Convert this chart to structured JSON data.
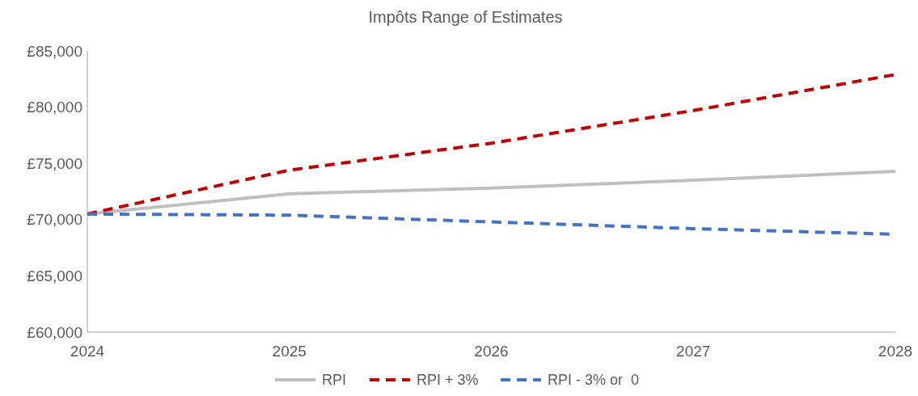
{
  "chart_data": {
    "type": "line",
    "title": "Impôts Range of Estimates",
    "categories": [
      "2024",
      "2025",
      "2026",
      "2027",
      "2028"
    ],
    "series": [
      {
        "name": "RPI",
        "color": "#bfbfbf",
        "line_style": "solid",
        "values": [
          70500,
          72300,
          72800,
          73500,
          74300
        ]
      },
      {
        "name": "RPI + 3%",
        "color": "#c00000",
        "line_style": "dashed",
        "values": [
          70500,
          74400,
          76800,
          79700,
          82900
        ]
      },
      {
        "name": "RPI - 3% or  0",
        "color": "#4472c4",
        "line_style": "dashed",
        "values": [
          70500,
          70400,
          69800,
          69200,
          68700
        ]
      }
    ],
    "ylim": [
      60000,
      85000
    ],
    "yticks": [
      {
        "value": 60000,
        "label": "£60,000"
      },
      {
        "value": 65000,
        "label": "£65,000"
      },
      {
        "value": 70000,
        "label": "£70,000"
      },
      {
        "value": 75000,
        "label": "£75,000"
      },
      {
        "value": 80000,
        "label": "£80,000"
      },
      {
        "value": 85000,
        "label": "£85,000"
      }
    ],
    "grid": false,
    "legend": "bottom",
    "marker": "none"
  }
}
